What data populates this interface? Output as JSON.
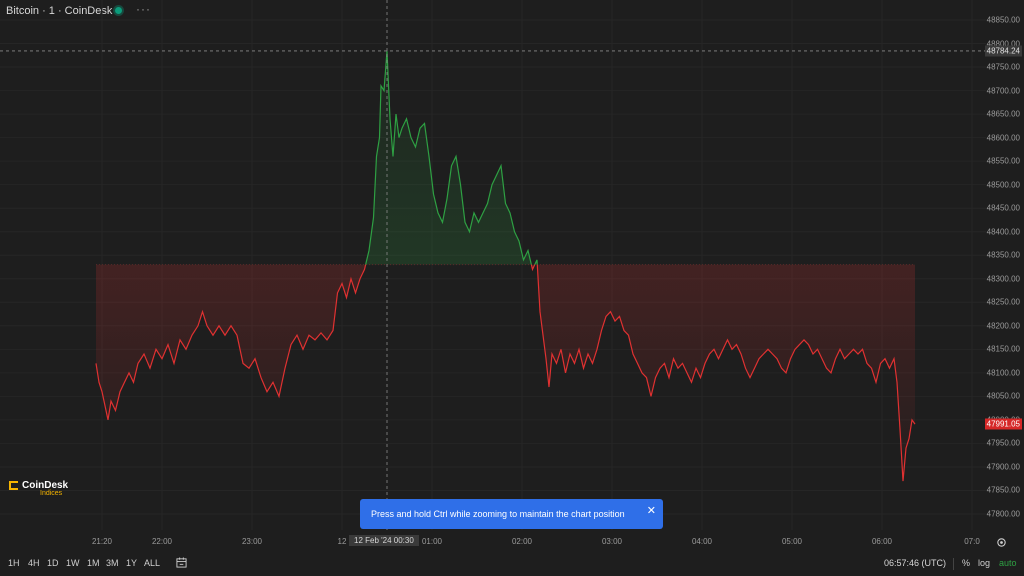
{
  "header": {
    "title": "Bitcoin · 1 · CoinDesk",
    "more": "···"
  },
  "chart_data": {
    "type": "area",
    "baseline": 48330,
    "current": 47991.05,
    "crosshair_price": "48784.24",
    "current_label": "47991.05",
    "colors": {
      "up": "#2ea043",
      "down": "#e03131",
      "up_fill": "#1f4a3a",
      "down_fill": "#4a1f1f"
    },
    "ylim": [
      47770,
      48870
    ],
    "y_ticks": [
      "48850.00",
      "48800.00",
      "48750.00",
      "48700.00",
      "48650.00",
      "48600.00",
      "48550.00",
      "48500.00",
      "48450.00",
      "48400.00",
      "48350.00",
      "48300.00",
      "48250.00",
      "48200.00",
      "48150.00",
      "48100.00",
      "48050.00",
      "48000.00",
      "47950.00",
      "47900.00",
      "47850.00",
      "47800.00"
    ],
    "y_tick_values": [
      48850,
      48800,
      48750,
      48700,
      48650,
      48600,
      48550,
      48500,
      48450,
      48400,
      48350,
      48300,
      48250,
      48200,
      48150,
      48100,
      48050,
      48000,
      47950,
      47900,
      47850,
      47800
    ],
    "x_ticks": [
      "21:20",
      "22:00",
      "23:00",
      "12",
      "01:00",
      "02:00",
      "03:00",
      "04:00",
      "05:00",
      "06:00",
      "07:0"
    ],
    "x_tick_times": [
      -40,
      0,
      60,
      120,
      180,
      240,
      300,
      360,
      420,
      480,
      540
    ],
    "crosshair_time": 150,
    "crosshair_date": "12 Feb '24   00:30",
    "x_minutes_offset_label": "minutes relative to 22:00",
    "series": [
      {
        "t": -44,
        "p": 48120
      },
      {
        "t": -42,
        "p": 48080
      },
      {
        "t": -40,
        "p": 48060
      },
      {
        "t": -38,
        "p": 48030
      },
      {
        "t": -36,
        "p": 48000
      },
      {
        "t": -34,
        "p": 48040
      },
      {
        "t": -31,
        "p": 48020
      },
      {
        "t": -28,
        "p": 48060
      },
      {
        "t": -25,
        "p": 48080
      },
      {
        "t": -22,
        "p": 48100
      },
      {
        "t": -19,
        "p": 48080
      },
      {
        "t": -16,
        "p": 48120
      },
      {
        "t": -12,
        "p": 48140
      },
      {
        "t": -8,
        "p": 48110
      },
      {
        "t": -4,
        "p": 48150
      },
      {
        "t": 0,
        "p": 48130
      },
      {
        "t": 4,
        "p": 48160
      },
      {
        "t": 8,
        "p": 48120
      },
      {
        "t": 12,
        "p": 48170
      },
      {
        "t": 16,
        "p": 48150
      },
      {
        "t": 20,
        "p": 48180
      },
      {
        "t": 24,
        "p": 48200
      },
      {
        "t": 27,
        "p": 48230
      },
      {
        "t": 30,
        "p": 48200
      },
      {
        "t": 34,
        "p": 48180
      },
      {
        "t": 38,
        "p": 48200
      },
      {
        "t": 42,
        "p": 48180
      },
      {
        "t": 46,
        "p": 48200
      },
      {
        "t": 50,
        "p": 48180
      },
      {
        "t": 54,
        "p": 48120
      },
      {
        "t": 58,
        "p": 48110
      },
      {
        "t": 62,
        "p": 48130
      },
      {
        "t": 66,
        "p": 48090
      },
      {
        "t": 70,
        "p": 48060
      },
      {
        "t": 74,
        "p": 48080
      },
      {
        "t": 78,
        "p": 48050
      },
      {
        "t": 82,
        "p": 48110
      },
      {
        "t": 86,
        "p": 48160
      },
      {
        "t": 90,
        "p": 48180
      },
      {
        "t": 94,
        "p": 48150
      },
      {
        "t": 98,
        "p": 48180
      },
      {
        "t": 102,
        "p": 48170
      },
      {
        "t": 106,
        "p": 48185
      },
      {
        "t": 110,
        "p": 48170
      },
      {
        "t": 114,
        "p": 48190
      },
      {
        "t": 117,
        "p": 48270
      },
      {
        "t": 120,
        "p": 48290
      },
      {
        "t": 123,
        "p": 48260
      },
      {
        "t": 126,
        "p": 48300
      },
      {
        "t": 129,
        "p": 48270
      },
      {
        "t": 132,
        "p": 48300
      },
      {
        "t": 135,
        "p": 48320
      },
      {
        "t": 138,
        "p": 48360
      },
      {
        "t": 141,
        "p": 48430
      },
      {
        "t": 143,
        "p": 48560
      },
      {
        "t": 145,
        "p": 48600
      },
      {
        "t": 146,
        "p": 48710
      },
      {
        "t": 148,
        "p": 48700
      },
      {
        "t": 150,
        "p": 48784
      },
      {
        "t": 152,
        "p": 48640
      },
      {
        "t": 154,
        "p": 48560
      },
      {
        "t": 156,
        "p": 48650
      },
      {
        "t": 158,
        "p": 48600
      },
      {
        "t": 160,
        "p": 48620
      },
      {
        "t": 163,
        "p": 48640
      },
      {
        "t": 166,
        "p": 48600
      },
      {
        "t": 169,
        "p": 48580
      },
      {
        "t": 172,
        "p": 48620
      },
      {
        "t": 175,
        "p": 48630
      },
      {
        "t": 178,
        "p": 48560
      },
      {
        "t": 181,
        "p": 48480
      },
      {
        "t": 184,
        "p": 48440
      },
      {
        "t": 187,
        "p": 48420
      },
      {
        "t": 190,
        "p": 48470
      },
      {
        "t": 193,
        "p": 48540
      },
      {
        "t": 196,
        "p": 48560
      },
      {
        "t": 199,
        "p": 48500
      },
      {
        "t": 202,
        "p": 48420
      },
      {
        "t": 205,
        "p": 48400
      },
      {
        "t": 208,
        "p": 48440
      },
      {
        "t": 211,
        "p": 48420
      },
      {
        "t": 214,
        "p": 48440
      },
      {
        "t": 217,
        "p": 48460
      },
      {
        "t": 220,
        "p": 48500
      },
      {
        "t": 223,
        "p": 48520
      },
      {
        "t": 226,
        "p": 48540
      },
      {
        "t": 229,
        "p": 48460
      },
      {
        "t": 232,
        "p": 48440
      },
      {
        "t": 235,
        "p": 48400
      },
      {
        "t": 238,
        "p": 48380
      },
      {
        "t": 241,
        "p": 48340
      },
      {
        "t": 244,
        "p": 48360
      },
      {
        "t": 247,
        "p": 48320
      },
      {
        "t": 250,
        "p": 48340
      },
      {
        "t": 252,
        "p": 48230
      },
      {
        "t": 254,
        "p": 48180
      },
      {
        "t": 256,
        "p": 48130
      },
      {
        "t": 258,
        "p": 48070
      },
      {
        "t": 260,
        "p": 48140
      },
      {
        "t": 263,
        "p": 48120
      },
      {
        "t": 266,
        "p": 48150
      },
      {
        "t": 269,
        "p": 48100
      },
      {
        "t": 272,
        "p": 48140
      },
      {
        "t": 275,
        "p": 48120
      },
      {
        "t": 278,
        "p": 48150
      },
      {
        "t": 281,
        "p": 48110
      },
      {
        "t": 284,
        "p": 48140
      },
      {
        "t": 287,
        "p": 48120
      },
      {
        "t": 290,
        "p": 48150
      },
      {
        "t": 293,
        "p": 48190
      },
      {
        "t": 296,
        "p": 48220
      },
      {
        "t": 299,
        "p": 48230
      },
      {
        "t": 302,
        "p": 48210
      },
      {
        "t": 305,
        "p": 48220
      },
      {
        "t": 308,
        "p": 48190
      },
      {
        "t": 311,
        "p": 48180
      },
      {
        "t": 314,
        "p": 48140
      },
      {
        "t": 317,
        "p": 48120
      },
      {
        "t": 320,
        "p": 48100
      },
      {
        "t": 323,
        "p": 48090
      },
      {
        "t": 326,
        "p": 48050
      },
      {
        "t": 329,
        "p": 48090
      },
      {
        "t": 332,
        "p": 48110
      },
      {
        "t": 335,
        "p": 48120
      },
      {
        "t": 338,
        "p": 48090
      },
      {
        "t": 341,
        "p": 48130
      },
      {
        "t": 344,
        "p": 48110
      },
      {
        "t": 347,
        "p": 48120
      },
      {
        "t": 350,
        "p": 48100
      },
      {
        "t": 353,
        "p": 48080
      },
      {
        "t": 356,
        "p": 48110
      },
      {
        "t": 359,
        "p": 48090
      },
      {
        "t": 362,
        "p": 48120
      },
      {
        "t": 365,
        "p": 48140
      },
      {
        "t": 368,
        "p": 48150
      },
      {
        "t": 371,
        "p": 48130
      },
      {
        "t": 374,
        "p": 48150
      },
      {
        "t": 377,
        "p": 48170
      },
      {
        "t": 380,
        "p": 48150
      },
      {
        "t": 383,
        "p": 48160
      },
      {
        "t": 386,
        "p": 48140
      },
      {
        "t": 389,
        "p": 48110
      },
      {
        "t": 392,
        "p": 48090
      },
      {
        "t": 395,
        "p": 48110
      },
      {
        "t": 398,
        "p": 48130
      },
      {
        "t": 401,
        "p": 48140
      },
      {
        "t": 404,
        "p": 48150
      },
      {
        "t": 407,
        "p": 48140
      },
      {
        "t": 410,
        "p": 48130
      },
      {
        "t": 413,
        "p": 48110
      },
      {
        "t": 416,
        "p": 48100
      },
      {
        "t": 419,
        "p": 48130
      },
      {
        "t": 422,
        "p": 48150
      },
      {
        "t": 425,
        "p": 48160
      },
      {
        "t": 428,
        "p": 48170
      },
      {
        "t": 431,
        "p": 48160
      },
      {
        "t": 434,
        "p": 48140
      },
      {
        "t": 437,
        "p": 48150
      },
      {
        "t": 440,
        "p": 48130
      },
      {
        "t": 443,
        "p": 48110
      },
      {
        "t": 446,
        "p": 48100
      },
      {
        "t": 449,
        "p": 48130
      },
      {
        "t": 452,
        "p": 48150
      },
      {
        "t": 455,
        "p": 48130
      },
      {
        "t": 458,
        "p": 48140
      },
      {
        "t": 461,
        "p": 48150
      },
      {
        "t": 464,
        "p": 48140
      },
      {
        "t": 467,
        "p": 48150
      },
      {
        "t": 470,
        "p": 48120
      },
      {
        "t": 473,
        "p": 48110
      },
      {
        "t": 476,
        "p": 48080
      },
      {
        "t": 479,
        "p": 48120
      },
      {
        "t": 482,
        "p": 48130
      },
      {
        "t": 485,
        "p": 48110
      },
      {
        "t": 488,
        "p": 48130
      },
      {
        "t": 490,
        "p": 48080
      },
      {
        "t": 492,
        "p": 47980
      },
      {
        "t": 494,
        "p": 47870
      },
      {
        "t": 496,
        "p": 47940
      },
      {
        "t": 498,
        "p": 47960
      },
      {
        "t": 500,
        "p": 48000
      },
      {
        "t": 502,
        "p": 47991
      }
    ]
  },
  "toast": {
    "message": "Press and hold Ctrl while zooming to maintain the chart position",
    "close": "✕"
  },
  "logo": {
    "name": "CoinDesk",
    "sub": "Indices"
  },
  "timeframes": [
    "1H",
    "4H",
    "1D",
    "1W",
    "1M",
    "3M",
    "1Y",
    "ALL"
  ],
  "footer": {
    "time": "06:57:46 (UTC)",
    "percent": "%",
    "log": "log",
    "auto": "auto"
  }
}
